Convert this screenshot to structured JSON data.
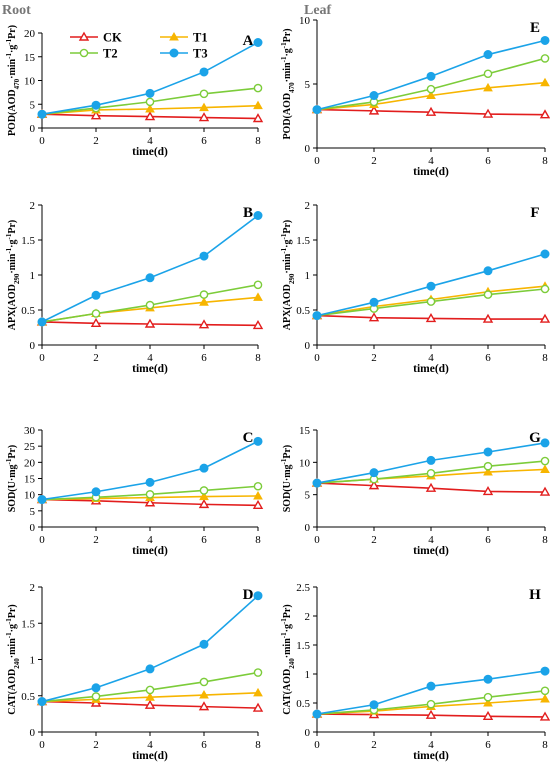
{
  "col_titles": {
    "root": "Root",
    "leaf": "Leaf"
  },
  "colors": {
    "CK": "#e21d1d",
    "T1": "#f7b500",
    "T2": "#7ccc3a",
    "T3": "#1ba3e8"
  },
  "legend": [
    {
      "series": "CK",
      "label": "CK"
    },
    {
      "series": "T1",
      "label": "T1"
    },
    {
      "series": "T2",
      "label": "T2"
    },
    {
      "series": "T3",
      "label": "T3"
    }
  ],
  "chart_data": [
    {
      "id": "A",
      "type": "line",
      "panel_label": "A",
      "xlabel": "time(d)",
      "ylabel_parts": [
        "POD(AOD",
        "470",
        "·min",
        "-1",
        "·g",
        "-1",
        "Pr)"
      ],
      "x": [
        0,
        2,
        4,
        6,
        8
      ],
      "xlim": [
        0,
        8
      ],
      "ylim": [
        0,
        20
      ],
      "yticks": [
        "0",
        "5",
        "10",
        "15",
        "20"
      ],
      "xticks": [
        "0",
        "2",
        "4",
        "6",
        "8"
      ],
      "series": [
        {
          "name": "CK",
          "values": [
            2.9,
            2.6,
            2.4,
            2.2,
            2.0
          ]
        },
        {
          "name": "T1",
          "values": [
            2.9,
            3.8,
            4.0,
            4.3,
            4.7
          ]
        },
        {
          "name": "T2",
          "values": [
            2.9,
            4.2,
            5.5,
            7.2,
            8.4
          ]
        },
        {
          "name": "T3",
          "values": [
            2.9,
            4.8,
            7.3,
            11.8,
            18.0
          ]
        }
      ]
    },
    {
      "id": "E",
      "type": "line",
      "panel_label": "E",
      "xlabel": "time(d)",
      "ylabel_parts": [
        "POD(AOD",
        "470",
        "·min",
        "-1",
        "·g",
        "-1",
        "Pr)"
      ],
      "x": [
        0,
        2,
        4,
        6,
        8
      ],
      "xlim": [
        0,
        8
      ],
      "ylim": [
        0,
        10
      ],
      "yticks": [
        "0",
        "5",
        "10"
      ],
      "xticks": [
        "0",
        "2",
        "4",
        "6",
        "8"
      ],
      "series": [
        {
          "name": "CK",
          "values": [
            3.0,
            2.9,
            2.8,
            2.65,
            2.6
          ]
        },
        {
          "name": "T1",
          "values": [
            3.0,
            3.4,
            4.1,
            4.7,
            5.1
          ]
        },
        {
          "name": "T2",
          "values": [
            3.0,
            3.6,
            4.6,
            5.8,
            7.0
          ]
        },
        {
          "name": "T3",
          "values": [
            3.0,
            4.1,
            5.6,
            7.3,
            8.4
          ]
        }
      ]
    },
    {
      "id": "B",
      "type": "line",
      "panel_label": "B",
      "xlabel": "time(d)",
      "ylabel_parts": [
        "APX(AOD",
        "290",
        "·min",
        "-1",
        "·g",
        "-1",
        "Pr)"
      ],
      "x": [
        0,
        2,
        4,
        6,
        8
      ],
      "xlim": [
        0,
        8
      ],
      "ylim": [
        0,
        2
      ],
      "yticks": [
        "0",
        "0.5",
        "1",
        "1.5",
        "2"
      ],
      "xticks": [
        "0",
        "2",
        "4",
        "6",
        "8"
      ],
      "series": [
        {
          "name": "CK",
          "values": [
            0.33,
            0.31,
            0.3,
            0.29,
            0.28
          ]
        },
        {
          "name": "T1",
          "values": [
            0.33,
            0.45,
            0.53,
            0.61,
            0.68
          ]
        },
        {
          "name": "T2",
          "values": [
            0.33,
            0.45,
            0.57,
            0.72,
            0.86
          ]
        },
        {
          "name": "T3",
          "values": [
            0.33,
            0.71,
            0.96,
            1.27,
            1.85
          ]
        }
      ]
    },
    {
      "id": "F",
      "type": "line",
      "panel_label": "F",
      "xlabel": "time(d)",
      "ylabel_parts": [
        "APX(AOD",
        "290",
        "·min",
        "-1",
        "·g",
        "-1",
        "Pr)"
      ],
      "x": [
        0,
        2,
        4,
        6,
        8
      ],
      "xlim": [
        0,
        8
      ],
      "ylim": [
        0,
        2
      ],
      "yticks": [
        "0",
        "0.5",
        "1",
        "1.5",
        "2"
      ],
      "xticks": [
        "0",
        "2",
        "4",
        "6",
        "8"
      ],
      "series": [
        {
          "name": "CK",
          "values": [
            0.42,
            0.39,
            0.38,
            0.37,
            0.37
          ]
        },
        {
          "name": "T1",
          "values": [
            0.42,
            0.55,
            0.65,
            0.76,
            0.84
          ]
        },
        {
          "name": "T2",
          "values": [
            0.42,
            0.52,
            0.62,
            0.72,
            0.8
          ]
        },
        {
          "name": "T3",
          "values": [
            0.42,
            0.61,
            0.84,
            1.06,
            1.3
          ]
        }
      ]
    },
    {
      "id": "C",
      "type": "line",
      "panel_label": "C",
      "xlabel": "time(d)",
      "ylabel_parts": [
        "SOD(U·mg",
        "-1",
        "Pr)"
      ],
      "x": [
        0,
        2,
        4,
        6,
        8
      ],
      "xlim": [
        0,
        8
      ],
      "ylim": [
        0,
        30
      ],
      "yticks": [
        "0",
        "5",
        "10",
        "15",
        "20",
        "25",
        "30"
      ],
      "xticks": [
        "0",
        "2",
        "4",
        "6",
        "8"
      ],
      "series": [
        {
          "name": "CK",
          "values": [
            8.5,
            8.1,
            7.5,
            7.0,
            6.7
          ]
        },
        {
          "name": "T1",
          "values": [
            8.5,
            8.8,
            9.1,
            9.4,
            9.6
          ]
        },
        {
          "name": "T2",
          "values": [
            8.5,
            9.2,
            10.1,
            11.3,
            12.6
          ]
        },
        {
          "name": "T3",
          "values": [
            8.5,
            10.9,
            13.8,
            18.2,
            26.5
          ]
        }
      ]
    },
    {
      "id": "G",
      "type": "line",
      "panel_label": "G",
      "xlabel": "time(d)",
      "ylabel_parts": [
        "SOD(U·mg",
        "-1",
        "Pr)"
      ],
      "x": [
        0,
        2,
        4,
        6,
        8
      ],
      "xlim": [
        0,
        8
      ],
      "ylim": [
        0,
        15
      ],
      "yticks": [
        "0",
        "5",
        "10",
        "15"
      ],
      "xticks": [
        "0",
        "2",
        "4",
        "6",
        "8"
      ],
      "series": [
        {
          "name": "CK",
          "values": [
            6.8,
            6.4,
            6.0,
            5.5,
            5.4
          ]
        },
        {
          "name": "T1",
          "values": [
            6.8,
            7.4,
            7.9,
            8.5,
            8.9
          ]
        },
        {
          "name": "T2",
          "values": [
            6.8,
            7.4,
            8.3,
            9.4,
            10.2
          ]
        },
        {
          "name": "T3",
          "values": [
            6.8,
            8.4,
            10.3,
            11.6,
            13.0
          ]
        }
      ]
    },
    {
      "id": "D",
      "type": "line",
      "panel_label": "D",
      "xlabel": "time(d)",
      "ylabel_parts": [
        "CAT(AOD",
        "240",
        "·min",
        "-1",
        "·g",
        "-1",
        "Pr)"
      ],
      "x": [
        0,
        2,
        4,
        6,
        8
      ],
      "xlim": [
        0,
        8
      ],
      "ylim": [
        0,
        2
      ],
      "yticks": [
        "0",
        "0.5",
        "1",
        "1.5",
        "2"
      ],
      "xticks": [
        "0",
        "2",
        "4",
        "6",
        "8"
      ],
      "series": [
        {
          "name": "CK",
          "values": [
            0.42,
            0.4,
            0.37,
            0.35,
            0.33
          ]
        },
        {
          "name": "T1",
          "values": [
            0.42,
            0.45,
            0.48,
            0.51,
            0.54
          ]
        },
        {
          "name": "T2",
          "values": [
            0.42,
            0.49,
            0.58,
            0.69,
            0.82
          ]
        },
        {
          "name": "T3",
          "values": [
            0.42,
            0.61,
            0.87,
            1.21,
            1.88
          ]
        }
      ]
    },
    {
      "id": "H",
      "type": "line",
      "panel_label": "H",
      "xlabel": "time(d)",
      "ylabel_parts": [
        "CAT(AOD",
        "240",
        "·min",
        "-1",
        "·g",
        "-1",
        "Pr)"
      ],
      "x": [
        0,
        2,
        4,
        6,
        8
      ],
      "xlim": [
        0,
        8
      ],
      "ylim": [
        0,
        2.5
      ],
      "yticks": [
        "0",
        "0.5",
        "1",
        "1.5",
        "2",
        "2.5"
      ],
      "xticks": [
        "0",
        "2",
        "4",
        "6",
        "8"
      ],
      "series": [
        {
          "name": "CK",
          "values": [
            0.31,
            0.3,
            0.29,
            0.27,
            0.26
          ]
        },
        {
          "name": "T1",
          "values": [
            0.31,
            0.36,
            0.44,
            0.5,
            0.57
          ]
        },
        {
          "name": "T2",
          "values": [
            0.31,
            0.38,
            0.48,
            0.6,
            0.71
          ]
        },
        {
          "name": "T3",
          "values": [
            0.31,
            0.47,
            0.79,
            0.91,
            1.05
          ]
        }
      ]
    }
  ]
}
